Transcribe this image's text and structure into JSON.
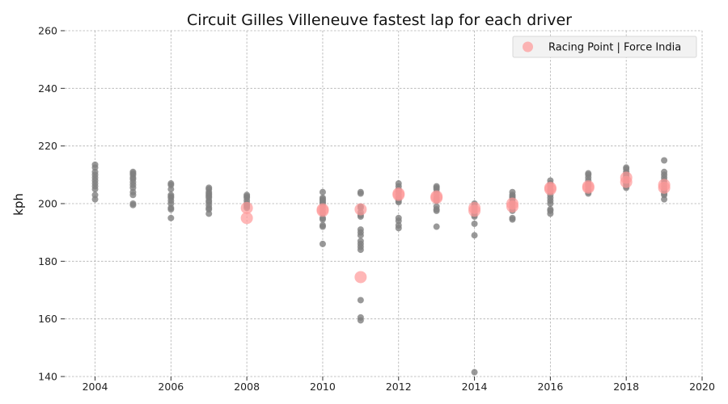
{
  "chart_data": {
    "type": "scatter",
    "title": "Circuit Gilles Villeneuve fastest lap for each driver",
    "xlabel": "",
    "ylabel": "kph",
    "xlim": [
      2003.2,
      2020
    ],
    "ylim": [
      140,
      260
    ],
    "xticks": [
      2004,
      2006,
      2008,
      2010,
      2012,
      2014,
      2016,
      2018,
      2020
    ],
    "yticks": [
      140,
      160,
      180,
      200,
      220,
      240,
      260
    ],
    "grid": true,
    "legend": {
      "placement": "top-right",
      "entries": [
        "Racing Point | Force India"
      ]
    },
    "colors": {
      "all_drivers": "#808080",
      "highlight": "#ff9999"
    },
    "series": [
      {
        "values": [
          [
            2004,
            213.5
          ],
          [
            2004,
            212.5
          ],
          [
            2004,
            211
          ],
          [
            2004,
            210
          ],
          [
            2004,
            209
          ],
          [
            2004,
            208
          ],
          [
            2004,
            207
          ],
          [
            2004,
            206
          ],
          [
            2004,
            205
          ],
          [
            2004,
            203
          ],
          [
            2004,
            201.5
          ],
          [
            2005,
            211
          ],
          [
            2005,
            210.5
          ],
          [
            2005,
            210
          ],
          [
            2005,
            209
          ],
          [
            2005,
            208.5
          ],
          [
            2005,
            207.5
          ],
          [
            2005,
            206.5
          ],
          [
            2005,
            205.5
          ],
          [
            2005,
            204
          ],
          [
            2005,
            203
          ],
          [
            2005,
            200
          ],
          [
            2005,
            199.5
          ],
          [
            2006,
            207
          ],
          [
            2006,
            206.5
          ],
          [
            2006,
            205
          ],
          [
            2006,
            203
          ],
          [
            2006,
            202.5
          ],
          [
            2006,
            202
          ],
          [
            2006,
            201
          ],
          [
            2006,
            200
          ],
          [
            2006,
            198.5
          ],
          [
            2006,
            198
          ],
          [
            2006,
            195
          ],
          [
            2007,
            205.5
          ],
          [
            2007,
            205
          ],
          [
            2007,
            204
          ],
          [
            2007,
            203.5
          ],
          [
            2007,
            203
          ],
          [
            2007,
            202.5
          ],
          [
            2007,
            202
          ],
          [
            2007,
            201
          ],
          [
            2007,
            200.5
          ],
          [
            2007,
            199.5
          ],
          [
            2007,
            198.5
          ],
          [
            2007,
            198
          ],
          [
            2007,
            196.5
          ],
          [
            2008,
            203
          ],
          [
            2008,
            202.5
          ],
          [
            2008,
            202
          ],
          [
            2008,
            201
          ],
          [
            2008,
            200
          ],
          [
            2008,
            199.5
          ],
          [
            2008,
            199
          ],
          [
            2008,
            198.5
          ],
          [
            2010,
            204
          ],
          [
            2010,
            202
          ],
          [
            2010,
            201.5
          ],
          [
            2010,
            201
          ],
          [
            2010,
            200.5
          ],
          [
            2010,
            200
          ],
          [
            2010,
            199
          ],
          [
            2010,
            198
          ],
          [
            2010,
            197
          ],
          [
            2010,
            196.5
          ],
          [
            2010,
            195
          ],
          [
            2010,
            194.5
          ],
          [
            2010,
            192.5
          ],
          [
            2010,
            192
          ],
          [
            2010,
            186
          ],
          [
            2011,
            204
          ],
          [
            2011,
            203.5
          ],
          [
            2011,
            199
          ],
          [
            2011,
            198.5
          ],
          [
            2011,
            197
          ],
          [
            2011,
            196
          ],
          [
            2011,
            195.5
          ],
          [
            2011,
            191
          ],
          [
            2011,
            190
          ],
          [
            2011,
            189
          ],
          [
            2011,
            187
          ],
          [
            2011,
            186
          ],
          [
            2011,
            185
          ],
          [
            2011,
            184
          ],
          [
            2011,
            166.5
          ],
          [
            2011,
            160.5
          ],
          [
            2011,
            159.5
          ],
          [
            2012,
            207
          ],
          [
            2012,
            206
          ],
          [
            2012,
            205
          ],
          [
            2012,
            204.5
          ],
          [
            2012,
            204
          ],
          [
            2012,
            203
          ],
          [
            2012,
            202
          ],
          [
            2012,
            201.5
          ],
          [
            2012,
            201
          ],
          [
            2012,
            200.5
          ],
          [
            2012,
            195
          ],
          [
            2012,
            194
          ],
          [
            2012,
            192.5
          ],
          [
            2012,
            191.5
          ],
          [
            2013,
            206
          ],
          [
            2013,
            205.5
          ],
          [
            2013,
            205
          ],
          [
            2013,
            204
          ],
          [
            2013,
            203
          ],
          [
            2013,
            202
          ],
          [
            2013,
            201.5
          ],
          [
            2013,
            201
          ],
          [
            2013,
            199
          ],
          [
            2013,
            198
          ],
          [
            2013,
            197.5
          ],
          [
            2013,
            192
          ],
          [
            2014,
            200
          ],
          [
            2014,
            199.5
          ],
          [
            2014,
            199
          ],
          [
            2014,
            198.5
          ],
          [
            2014,
            198
          ],
          [
            2014,
            197.5
          ],
          [
            2014,
            197
          ],
          [
            2014,
            196.5
          ],
          [
            2014,
            196
          ],
          [
            2014,
            195.5
          ],
          [
            2014,
            193
          ],
          [
            2014,
            189
          ],
          [
            2014,
            141.5
          ],
          [
            2015,
            204
          ],
          [
            2015,
            203
          ],
          [
            2015,
            202.5
          ],
          [
            2015,
            202
          ],
          [
            2015,
            201.5
          ],
          [
            2015,
            200.5
          ],
          [
            2015,
            200
          ],
          [
            2015,
            199
          ],
          [
            2015,
            198
          ],
          [
            2015,
            197.5
          ],
          [
            2015,
            195
          ],
          [
            2015,
            194.5
          ],
          [
            2016,
            208
          ],
          [
            2016,
            207
          ],
          [
            2016,
            206.5
          ],
          [
            2016,
            206
          ],
          [
            2016,
            205
          ],
          [
            2016,
            204.5
          ],
          [
            2016,
            204
          ],
          [
            2016,
            203
          ],
          [
            2016,
            202
          ],
          [
            2016,
            201
          ],
          [
            2016,
            200
          ],
          [
            2016,
            198
          ],
          [
            2016,
            197.5
          ],
          [
            2016,
            196.5
          ],
          [
            2017,
            210.5
          ],
          [
            2017,
            210
          ],
          [
            2017,
            209
          ],
          [
            2017,
            208
          ],
          [
            2017,
            207
          ],
          [
            2017,
            206.5
          ],
          [
            2017,
            206
          ],
          [
            2017,
            205
          ],
          [
            2017,
            204.5
          ],
          [
            2017,
            204
          ],
          [
            2017,
            203.5
          ],
          [
            2018,
            212.5
          ],
          [
            2018,
            212
          ],
          [
            2018,
            211
          ],
          [
            2018,
            210.5
          ],
          [
            2018,
            210
          ],
          [
            2018,
            209.5
          ],
          [
            2018,
            209
          ],
          [
            2018,
            208
          ],
          [
            2018,
            207.5
          ],
          [
            2018,
            207
          ],
          [
            2018,
            206.5
          ],
          [
            2018,
            206
          ],
          [
            2018,
            205.5
          ],
          [
            2019,
            215
          ],
          [
            2019,
            211
          ],
          [
            2019,
            210
          ],
          [
            2019,
            209
          ],
          [
            2019,
            208
          ],
          [
            2019,
            207
          ],
          [
            2019,
            206
          ],
          [
            2019,
            205
          ],
          [
            2019,
            204.5
          ],
          [
            2019,
            203.5
          ],
          [
            2019,
            203
          ],
          [
            2019,
            201.5
          ]
        ]
      },
      {
        "name": "Racing Point | Force India",
        "values": [
          [
            2008,
            198.5
          ],
          [
            2008,
            195
          ],
          [
            2010,
            198
          ],
          [
            2010,
            197.5
          ],
          [
            2011,
            198
          ],
          [
            2011,
            174.5
          ],
          [
            2012,
            203.5
          ],
          [
            2012,
            203
          ],
          [
            2013,
            202
          ],
          [
            2013,
            202.5
          ],
          [
            2014,
            198.5
          ],
          [
            2014,
            197.5
          ],
          [
            2015,
            200
          ],
          [
            2015,
            199
          ],
          [
            2016,
            205
          ],
          [
            2016,
            205.5
          ],
          [
            2017,
            206
          ],
          [
            2017,
            205.5
          ],
          [
            2018,
            209
          ],
          [
            2018,
            207.5
          ],
          [
            2019,
            206.5
          ],
          [
            2019,
            205.5
          ]
        ]
      }
    ]
  }
}
